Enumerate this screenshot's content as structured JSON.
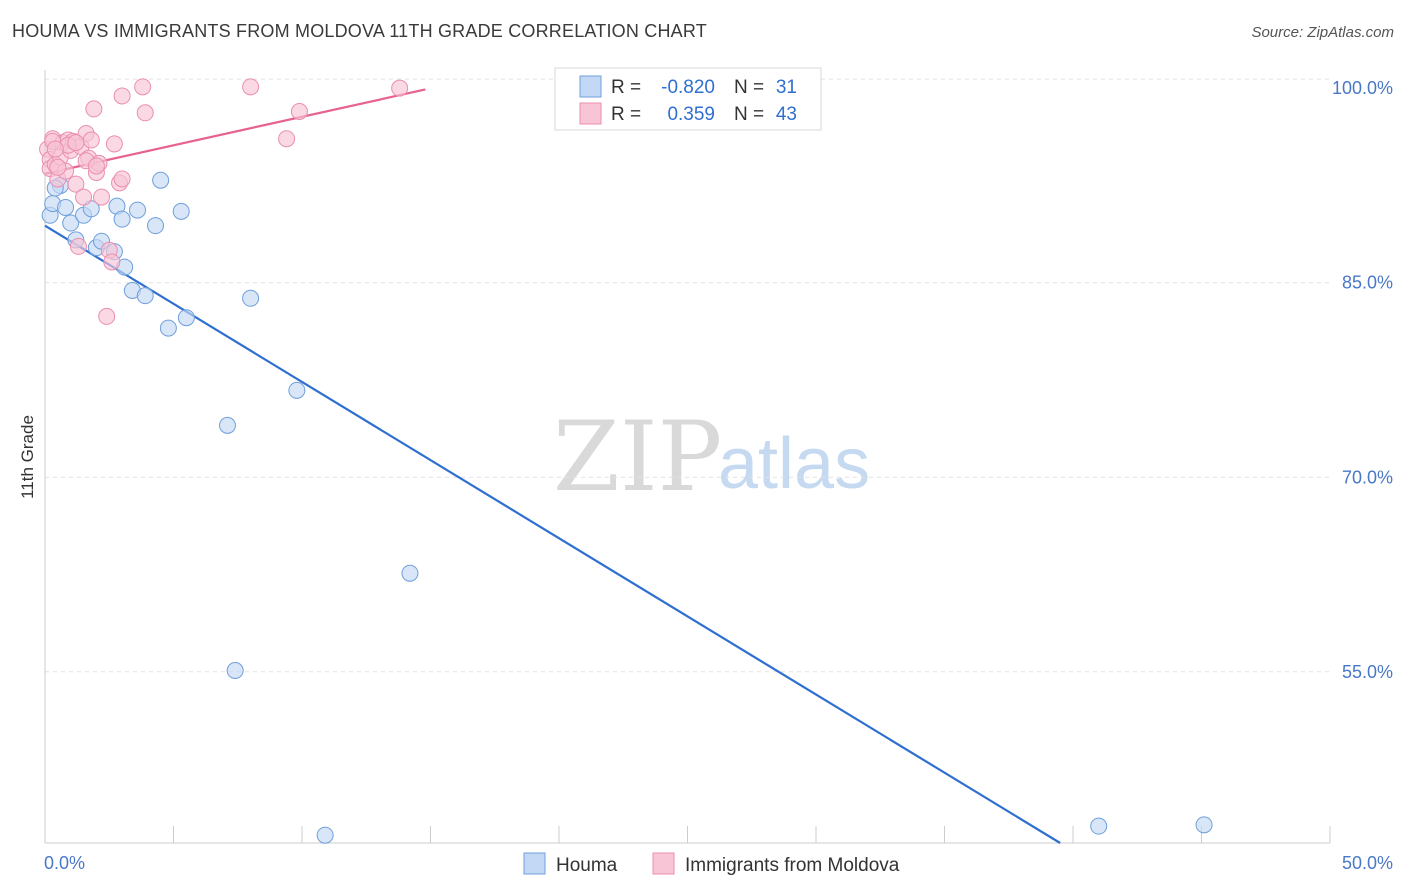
{
  "title": "HOUMA VS IMMIGRANTS FROM MOLDOVA 11TH GRADE CORRELATION CHART",
  "source": "Source: ZipAtlas.com",
  "watermark": {
    "zip": "ZIP",
    "atlas": "atlas"
  },
  "colors": {
    "houma_fill": "#c3d8f5",
    "houma_stroke": "#6f9fdb",
    "houma_line": "#2e6fd0",
    "moldova_fill": "#f8c5d6",
    "moldova_stroke": "#ea8eaf",
    "moldova_line": "#e8628f",
    "grid": "#e2e2e2",
    "axis_text": "#4a78c8"
  },
  "legend": {
    "rows": [
      {
        "r_label": "R =",
        "r_value": "-0.820",
        "n_label": "N =",
        "n_value": "31"
      },
      {
        "r_label": "R =",
        "r_value": "0.359",
        "n_label": "N =",
        "n_value": "43"
      }
    ]
  },
  "chart_data": {
    "type": "scatter",
    "title": "HOUMA VS IMMIGRANTS FROM MOLDOVA 11TH GRADE CORRELATION CHART",
    "xlabel": "",
    "ylabel": "11th Grade",
    "xlim": [
      0,
      50
    ],
    "ylim": [
      41.8,
      101.4
    ],
    "x_tick_labels": [
      "0.0%",
      "50.0%"
    ],
    "y_ticks": [
      55,
      70,
      85,
      100
    ],
    "y_tick_labels": [
      "55.0%",
      "70.0%",
      "85.0%",
      "100.0%"
    ],
    "grid": true,
    "series": [
      {
        "name": "Houma",
        "r": -0.82,
        "n": 31,
        "points": [
          {
            "x": 0.2,
            "y": 90.2
          },
          {
            "x": 0.3,
            "y": 91.1
          },
          {
            "x": 0.6,
            "y": 92.5
          },
          {
            "x": 0.8,
            "y": 90.8
          },
          {
            "x": 1.0,
            "y": 89.6
          },
          {
            "x": 1.2,
            "y": 88.3
          },
          {
            "x": 1.5,
            "y": 90.2
          },
          {
            "x": 1.8,
            "y": 90.7
          },
          {
            "x": 2.0,
            "y": 87.7
          },
          {
            "x": 2.2,
            "y": 88.2
          },
          {
            "x": 2.7,
            "y": 87.4
          },
          {
            "x": 2.8,
            "y": 90.9
          },
          {
            "x": 3.0,
            "y": 89.9
          },
          {
            "x": 3.1,
            "y": 86.2
          },
          {
            "x": 3.4,
            "y": 84.4
          },
          {
            "x": 3.6,
            "y": 90.6
          },
          {
            "x": 3.9,
            "y": 84.0
          },
          {
            "x": 4.3,
            "y": 89.4
          },
          {
            "x": 4.5,
            "y": 92.9
          },
          {
            "x": 4.8,
            "y": 81.5
          },
          {
            "x": 5.3,
            "y": 90.5
          },
          {
            "x": 5.5,
            "y": 82.3
          },
          {
            "x": 7.1,
            "y": 74.0
          },
          {
            "x": 7.4,
            "y": 55.1
          },
          {
            "x": 8.0,
            "y": 83.8
          },
          {
            "x": 9.8,
            "y": 76.7
          },
          {
            "x": 10.9,
            "y": 42.4
          },
          {
            "x": 14.2,
            "y": 62.6
          },
          {
            "x": 41.0,
            "y": 43.1
          },
          {
            "x": 45.1,
            "y": 43.2
          },
          {
            "x": 0.4,
            "y": 92.3
          }
        ],
        "trend": {
          "x": [
            0.0,
            39.5
          ],
          "y": [
            89.4,
            41.8
          ]
        }
      },
      {
        "name": "Immigrants from Moldova",
        "r": 0.359,
        "n": 43,
        "points": [
          {
            "x": 0.1,
            "y": 95.3
          },
          {
            "x": 0.2,
            "y": 94.5
          },
          {
            "x": 0.2,
            "y": 93.8
          },
          {
            "x": 0.3,
            "y": 96.1
          },
          {
            "x": 0.4,
            "y": 94.1
          },
          {
            "x": 0.5,
            "y": 93.0
          },
          {
            "x": 0.6,
            "y": 94.7
          },
          {
            "x": 0.7,
            "y": 95.8
          },
          {
            "x": 0.8,
            "y": 93.6
          },
          {
            "x": 0.9,
            "y": 96.0
          },
          {
            "x": 1.0,
            "y": 95.2
          },
          {
            "x": 1.1,
            "y": 95.9
          },
          {
            "x": 1.2,
            "y": 92.6
          },
          {
            "x": 1.3,
            "y": 87.8
          },
          {
            "x": 1.4,
            "y": 95.5
          },
          {
            "x": 1.5,
            "y": 91.6
          },
          {
            "x": 1.6,
            "y": 96.5
          },
          {
            "x": 1.7,
            "y": 94.6
          },
          {
            "x": 1.8,
            "y": 96.0
          },
          {
            "x": 1.9,
            "y": 98.4
          },
          {
            "x": 2.0,
            "y": 93.5
          },
          {
            "x": 2.1,
            "y": 94.2
          },
          {
            "x": 2.2,
            "y": 91.6
          },
          {
            "x": 2.4,
            "y": 82.4
          },
          {
            "x": 2.5,
            "y": 87.5
          },
          {
            "x": 2.6,
            "y": 86.6
          },
          {
            "x": 2.7,
            "y": 95.7
          },
          {
            "x": 2.9,
            "y": 92.7
          },
          {
            "x": 3.0,
            "y": 99.4
          },
          {
            "x": 3.0,
            "y": 93.0
          },
          {
            "x": 3.8,
            "y": 100.1
          },
          {
            "x": 3.9,
            "y": 98.1
          },
          {
            "x": 8.0,
            "y": 100.1
          },
          {
            "x": 9.4,
            "y": 96.1
          },
          {
            "x": 9.9,
            "y": 98.2
          },
          {
            "x": 13.8,
            "y": 100.0
          },
          {
            "x": 0.3,
            "y": 95.9
          },
          {
            "x": 0.5,
            "y": 93.9
          },
          {
            "x": 0.9,
            "y": 95.6
          },
          {
            "x": 1.2,
            "y": 95.8
          },
          {
            "x": 1.6,
            "y": 94.4
          },
          {
            "x": 0.4,
            "y": 95.3
          },
          {
            "x": 2.0,
            "y": 94.0
          }
        ],
        "trend": {
          "x": [
            0.0,
            14.8
          ],
          "y": [
            93.4,
            99.9
          ]
        }
      }
    ]
  },
  "bottom_legend": [
    {
      "label": "Houma"
    },
    {
      "label": "Immigrants from Moldova"
    }
  ]
}
